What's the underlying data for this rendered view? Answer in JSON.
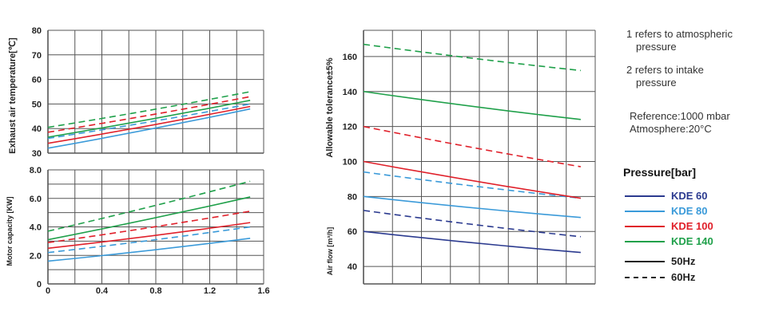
{
  "notes": {
    "n1_line1": "1 refers to atmospheric",
    "n1_line2": "pressure",
    "n2_line1": "2 refers to intake",
    "n2_line2": "pressure",
    "ref_line1": "Reference:1000 mbar",
    "ref_line2": "Atmosphere:20°C"
  },
  "legend": {
    "title": "Pressure[bar]",
    "items": [
      {
        "label": "KDE 60",
        "color": "#2b3a8f",
        "dash": "solid"
      },
      {
        "label": "KDE 80",
        "color": "#3a9ad9",
        "dash": "solid"
      },
      {
        "label": "KDE 100",
        "color": "#e0202a",
        "dash": "solid"
      },
      {
        "label": "KDE 140",
        "color": "#1fa04a",
        "dash": "solid"
      },
      {
        "label": "50Hz",
        "color": "#222222",
        "dash": "solid"
      },
      {
        "label": "60Hz",
        "color": "#222222",
        "dash": "dashed"
      }
    ]
  },
  "chart_data": [
    {
      "type": "line",
      "ylabel": "Exhaust air temperature[℃]",
      "xlabel": "",
      "xlim": [
        0,
        1.6
      ],
      "ylim": [
        30,
        80
      ],
      "yticks": [
        "30",
        "40",
        "50",
        "60",
        "70",
        "80"
      ],
      "x": [
        0,
        1.5
      ],
      "series": [
        {
          "color": "#3a9ad9",
          "dash": "solid",
          "values": [
            32,
            48
          ]
        },
        {
          "color": "#e0202a",
          "dash": "solid",
          "values": [
            34,
            49
          ]
        },
        {
          "color": "#3a9ad9",
          "dash": "dashed",
          "values": [
            36,
            50
          ]
        },
        {
          "color": "#1fa04a",
          "dash": "solid",
          "values": [
            36.5,
            51.5
          ]
        },
        {
          "color": "#e0202a",
          "dash": "dashed",
          "values": [
            38.5,
            53
          ]
        },
        {
          "color": "#1fa04a",
          "dash": "dashed",
          "values": [
            40.5,
            55
          ]
        }
      ]
    },
    {
      "type": "line",
      "ylabel": "Motor capacity [KW]",
      "xlabel": "",
      "xlim": [
        0,
        1.6
      ],
      "ylim": [
        0,
        8
      ],
      "yticks": [
        "0",
        "2.0",
        "4.0",
        "6.0",
        "8.0"
      ],
      "xticks": [
        "0",
        "0.4",
        "0.8",
        "1.2",
        "1.6"
      ],
      "x": [
        0,
        1.5
      ],
      "series": [
        {
          "color": "#3a9ad9",
          "dash": "solid",
          "values": [
            1.6,
            3.2
          ]
        },
        {
          "color": "#3a9ad9",
          "dash": "dashed",
          "values": [
            2.2,
            4.0
          ]
        },
        {
          "color": "#e0202a",
          "dash": "solid",
          "values": [
            2.5,
            4.3
          ]
        },
        {
          "color": "#e0202a",
          "dash": "dashed",
          "values": [
            2.9,
            5.1
          ]
        },
        {
          "color": "#1fa04a",
          "dash": "solid",
          "values": [
            3.1,
            6.1
          ]
        },
        {
          "color": "#1fa04a",
          "dash": "dashed",
          "values": [
            3.7,
            7.2
          ]
        }
      ]
    },
    {
      "type": "line",
      "ylabel": "Allowable tolerance±5%",
      "ylabel2": "Air flow [m³/h]",
      "xlabel": "",
      "xlim": [
        0,
        1.6
      ],
      "ylim": [
        30,
        175
      ],
      "yticks": [
        "40",
        "60",
        "80",
        "100",
        "120",
        "140",
        "160"
      ],
      "x": [
        0,
        1.5
      ],
      "series": [
        {
          "color": "#2b3a8f",
          "dash": "solid",
          "values": [
            60,
            48
          ]
        },
        {
          "color": "#2b3a8f",
          "dash": "dashed",
          "values": [
            72,
            57
          ]
        },
        {
          "color": "#3a9ad9",
          "dash": "solid",
          "values": [
            80,
            68
          ]
        },
        {
          "color": "#3a9ad9",
          "dash": "dashed",
          "values": [
            94,
            79
          ]
        },
        {
          "color": "#e0202a",
          "dash": "solid",
          "values": [
            100,
            79
          ]
        },
        {
          "color": "#e0202a",
          "dash": "dashed",
          "values": [
            120,
            97
          ]
        },
        {
          "color": "#1fa04a",
          "dash": "solid",
          "values": [
            140,
            124
          ]
        },
        {
          "color": "#1fa04a",
          "dash": "dashed",
          "values": [
            167,
            152
          ]
        }
      ]
    }
  ]
}
